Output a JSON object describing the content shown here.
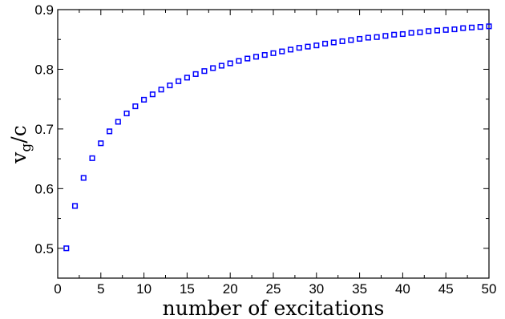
{
  "chart_data": {
    "type": "scatter",
    "title": "",
    "xlabel": "number of excitations",
    "ylabel": {
      "main": "v",
      "sub": "g",
      "rest": "/c"
    },
    "xlim": [
      0,
      50
    ],
    "ylim": [
      0.45,
      0.9
    ],
    "xticks": [
      0,
      5,
      10,
      15,
      20,
      25,
      30,
      35,
      40,
      45,
      50
    ],
    "yticks": [
      0.5,
      0.6,
      0.7,
      0.8,
      0.9
    ],
    "xtick_labels": [
      "0",
      "5",
      "10",
      "15",
      "20",
      "25",
      "30",
      "35",
      "40",
      "45",
      "50"
    ],
    "ytick_labels": [
      "0.5",
      "0.6",
      "0.7",
      "0.8",
      "0.9"
    ],
    "marker": "open-square",
    "marker_color": "#0000ff",
    "grid": false,
    "series": [
      {
        "x": [
          1,
          2,
          3,
          4,
          5,
          6,
          7,
          8,
          9,
          10,
          11,
          12,
          13,
          14,
          15,
          16,
          17,
          18,
          19,
          20,
          21,
          22,
          23,
          24,
          25,
          26,
          27,
          28,
          29,
          30,
          31,
          32,
          33,
          34,
          35,
          36,
          37,
          38,
          39,
          40,
          41,
          42,
          43,
          44,
          45,
          46,
          47,
          48,
          49,
          50
        ],
        "values": [
          0.5,
          0.571,
          0.618,
          0.651,
          0.676,
          0.696,
          0.712,
          0.726,
          0.738,
          0.749,
          0.758,
          0.766,
          0.773,
          0.78,
          0.786,
          0.792,
          0.797,
          0.802,
          0.806,
          0.81,
          0.814,
          0.818,
          0.821,
          0.824,
          0.827,
          0.83,
          0.833,
          0.836,
          0.838,
          0.84,
          0.843,
          0.845,
          0.847,
          0.849,
          0.851,
          0.853,
          0.854,
          0.856,
          0.858,
          0.859,
          0.861,
          0.862,
          0.864,
          0.865,
          0.866,
          0.867,
          0.869,
          0.87,
          0.871,
          0.872
        ]
      }
    ]
  }
}
